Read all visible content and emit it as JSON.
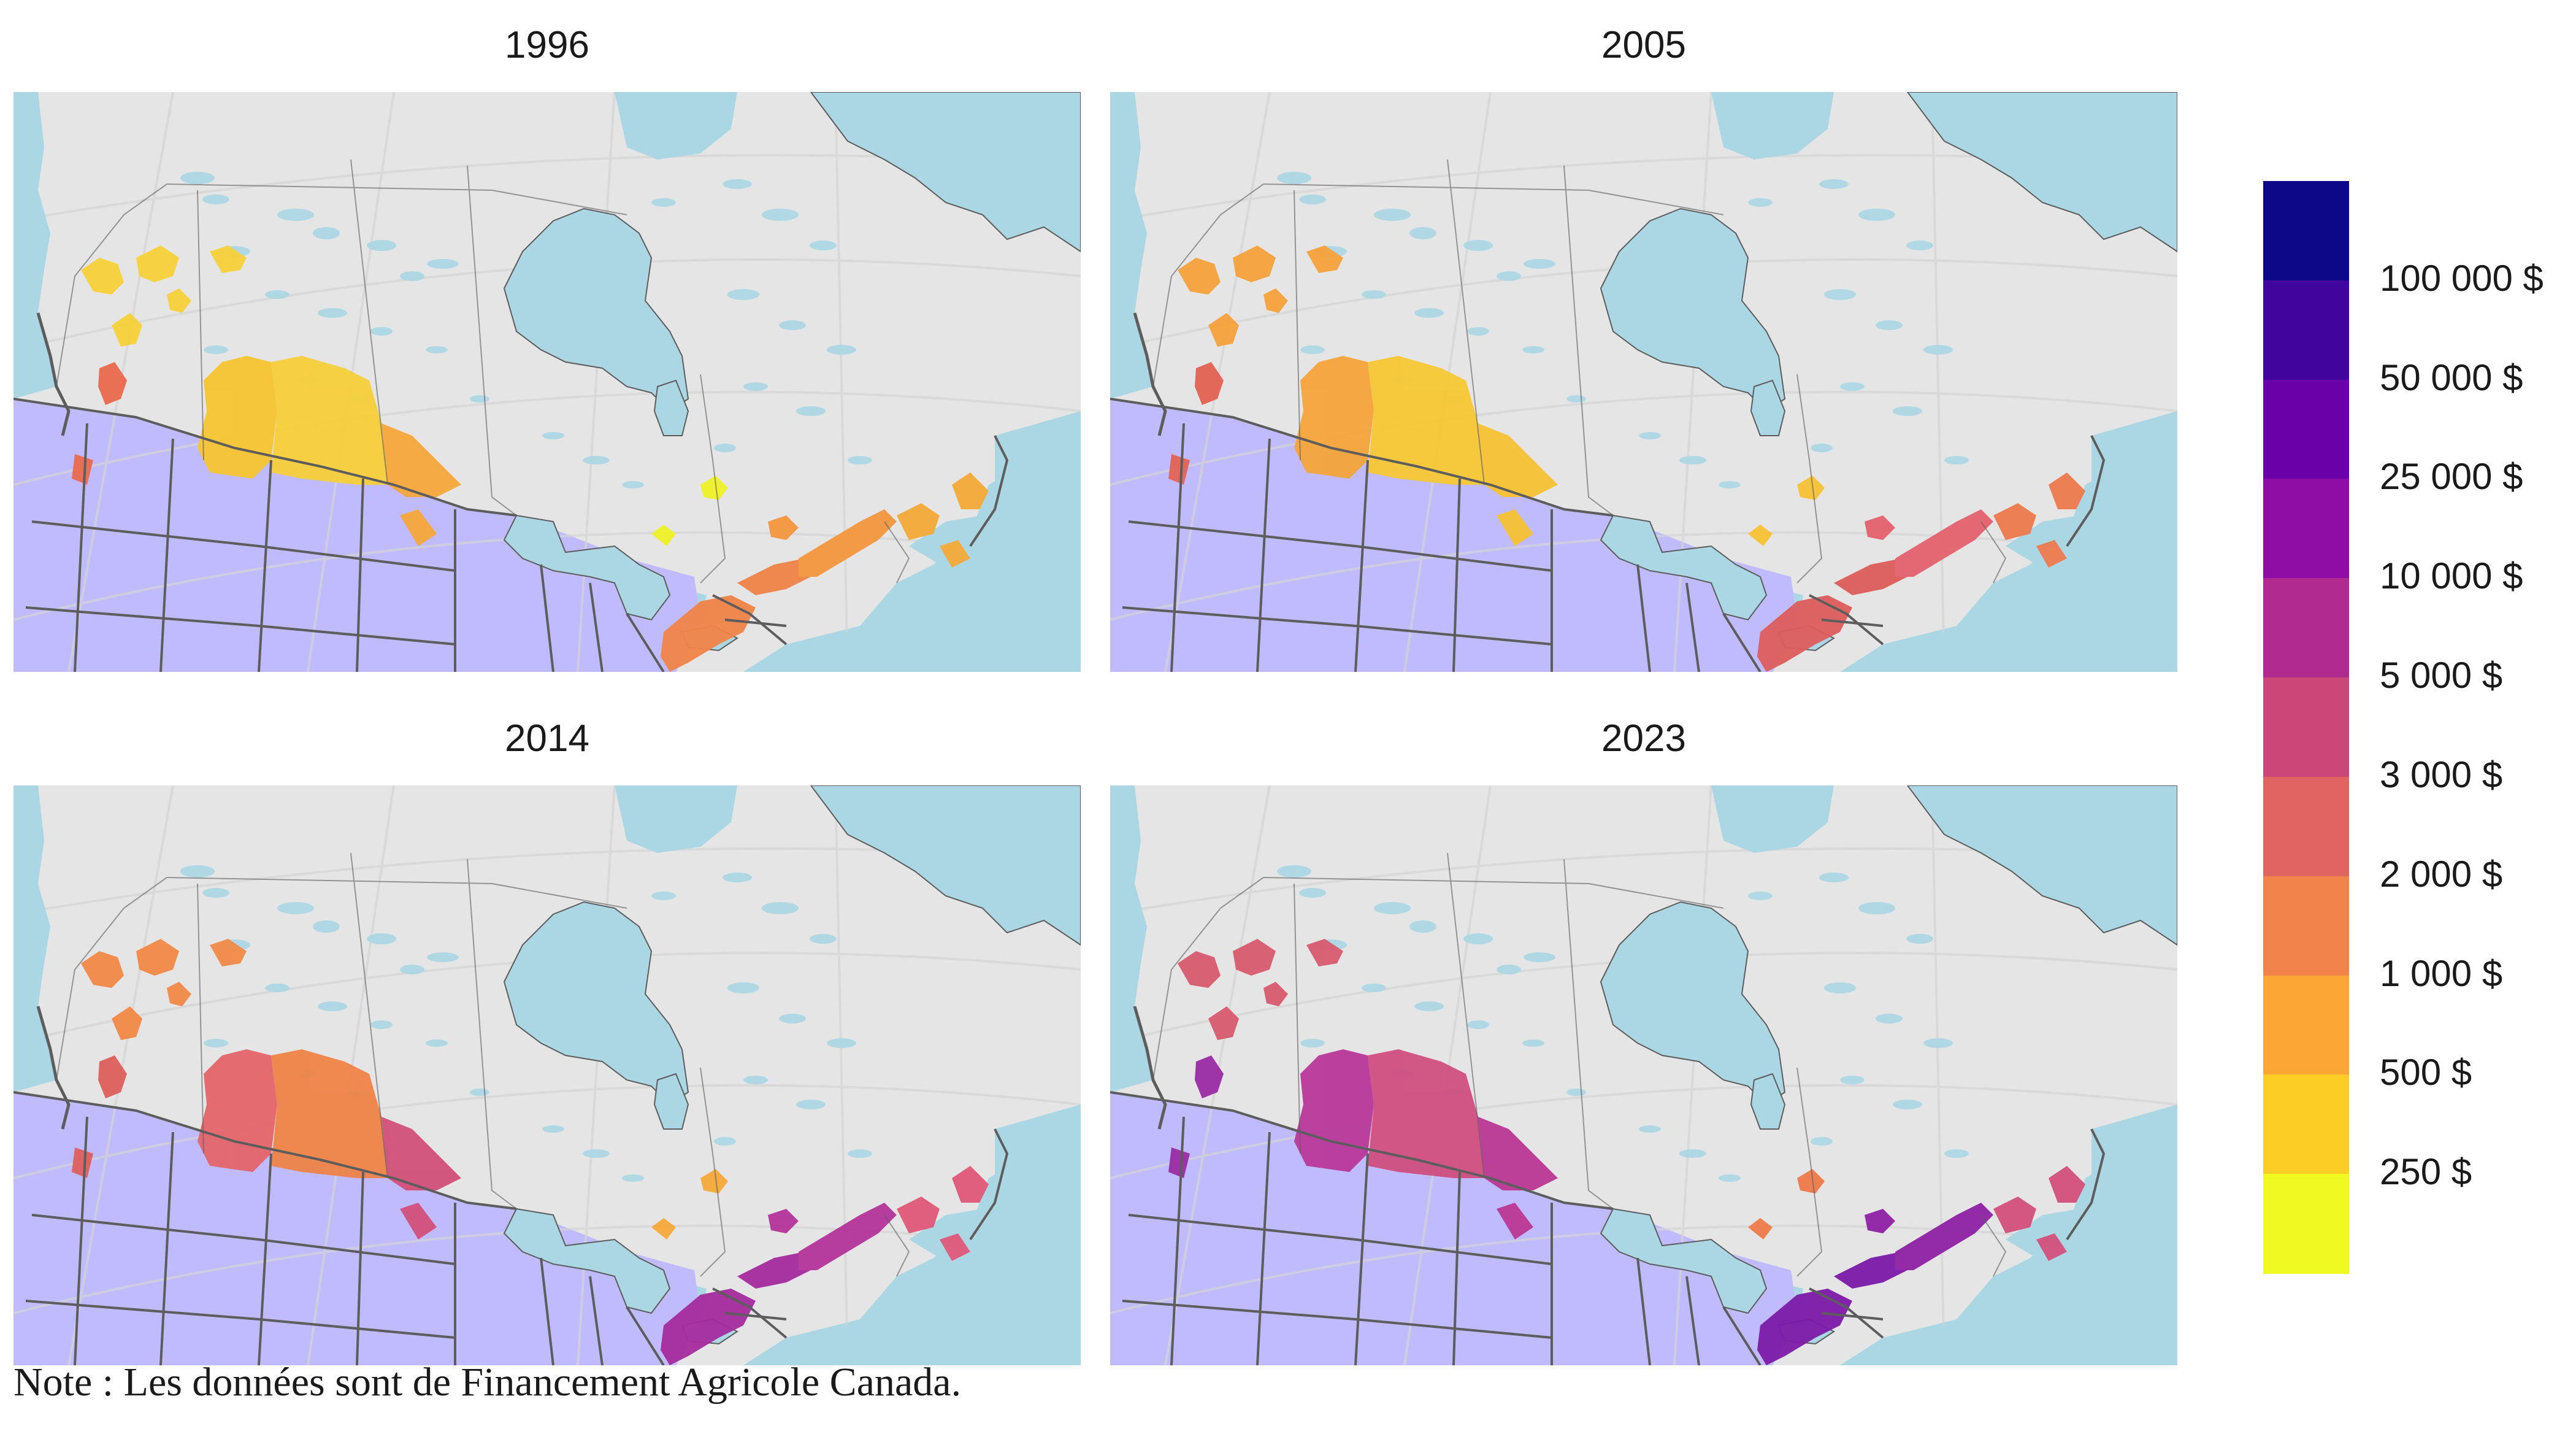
{
  "panels": [
    {
      "year": "1996",
      "region_colors": {
        "bc": "#f7d13a",
        "bc_south": "#ea6a4e",
        "alberta": "#f7c531",
        "saskatchewan": "#f7cf3a",
        "manitoba": "#f6a73b",
        "ontario_north": "#eef226",
        "ontario_south": "#f08448",
        "quebec": "#f4973f",
        "maritimes": "#f3aa37"
      }
    },
    {
      "year": "2005",
      "region_colors": {
        "bc": "#f6a23b",
        "bc_south": "#e26353",
        "alberta": "#f5a43a",
        "saskatchewan": "#f7c834",
        "manitoba": "#f7c233",
        "ontario_north": "#f7c233",
        "ontario_south": "#dd5d5d",
        "quebec": "#e4626d",
        "maritimes": "#ee7a4e"
      }
    },
    {
      "year": "2014",
      "region_colors": {
        "bc": "#f28a47",
        "bc_south": "#dd5f5c",
        "alberta": "#e4656a",
        "saskatchewan": "#ef8448",
        "manitoba": "#d2507a",
        "ontario_north": "#f6a93b",
        "ontario_south": "#a52b9e",
        "quebec": "#b4339a",
        "maritimes": "#e0587a"
      }
    },
    {
      "year": "2023",
      "region_colors": {
        "bc": "#d85b6f",
        "bc_south": "#9a2ca5",
        "alberta": "#b9389a",
        "saskatchewan": "#d04f80",
        "manitoba": "#bb3894",
        "ontario_north": "#ef7a4a",
        "ontario_south": "#7c1aa8",
        "quebec": "#8f22a6",
        "maritimes": "#d4507d"
      }
    }
  ],
  "map_colors": {
    "water": "#abd7e4",
    "canada_land": "#e5e5e5",
    "usa_land": "#bfbbfe",
    "boundary": "#5d5d5d",
    "graticule": "#d4d4d4"
  },
  "legend": {
    "labels": [
      "100 000 $",
      "50 000 $",
      "25 000 $",
      "10 000 $",
      "5 000 $",
      "3 000 $",
      "2 000 $",
      "1 000 $",
      "500 $",
      "250 $"
    ],
    "colors": [
      "#0d0887",
      "#41049d",
      "#6a00a8",
      "#8f0da4",
      "#b12a90",
      "#cc4778",
      "#e16462",
      "#f2844b",
      "#fca636",
      "#fcce25",
      "#f0f921"
    ]
  },
  "note": "Note : Les données sont de Financement Agricole Canada."
}
